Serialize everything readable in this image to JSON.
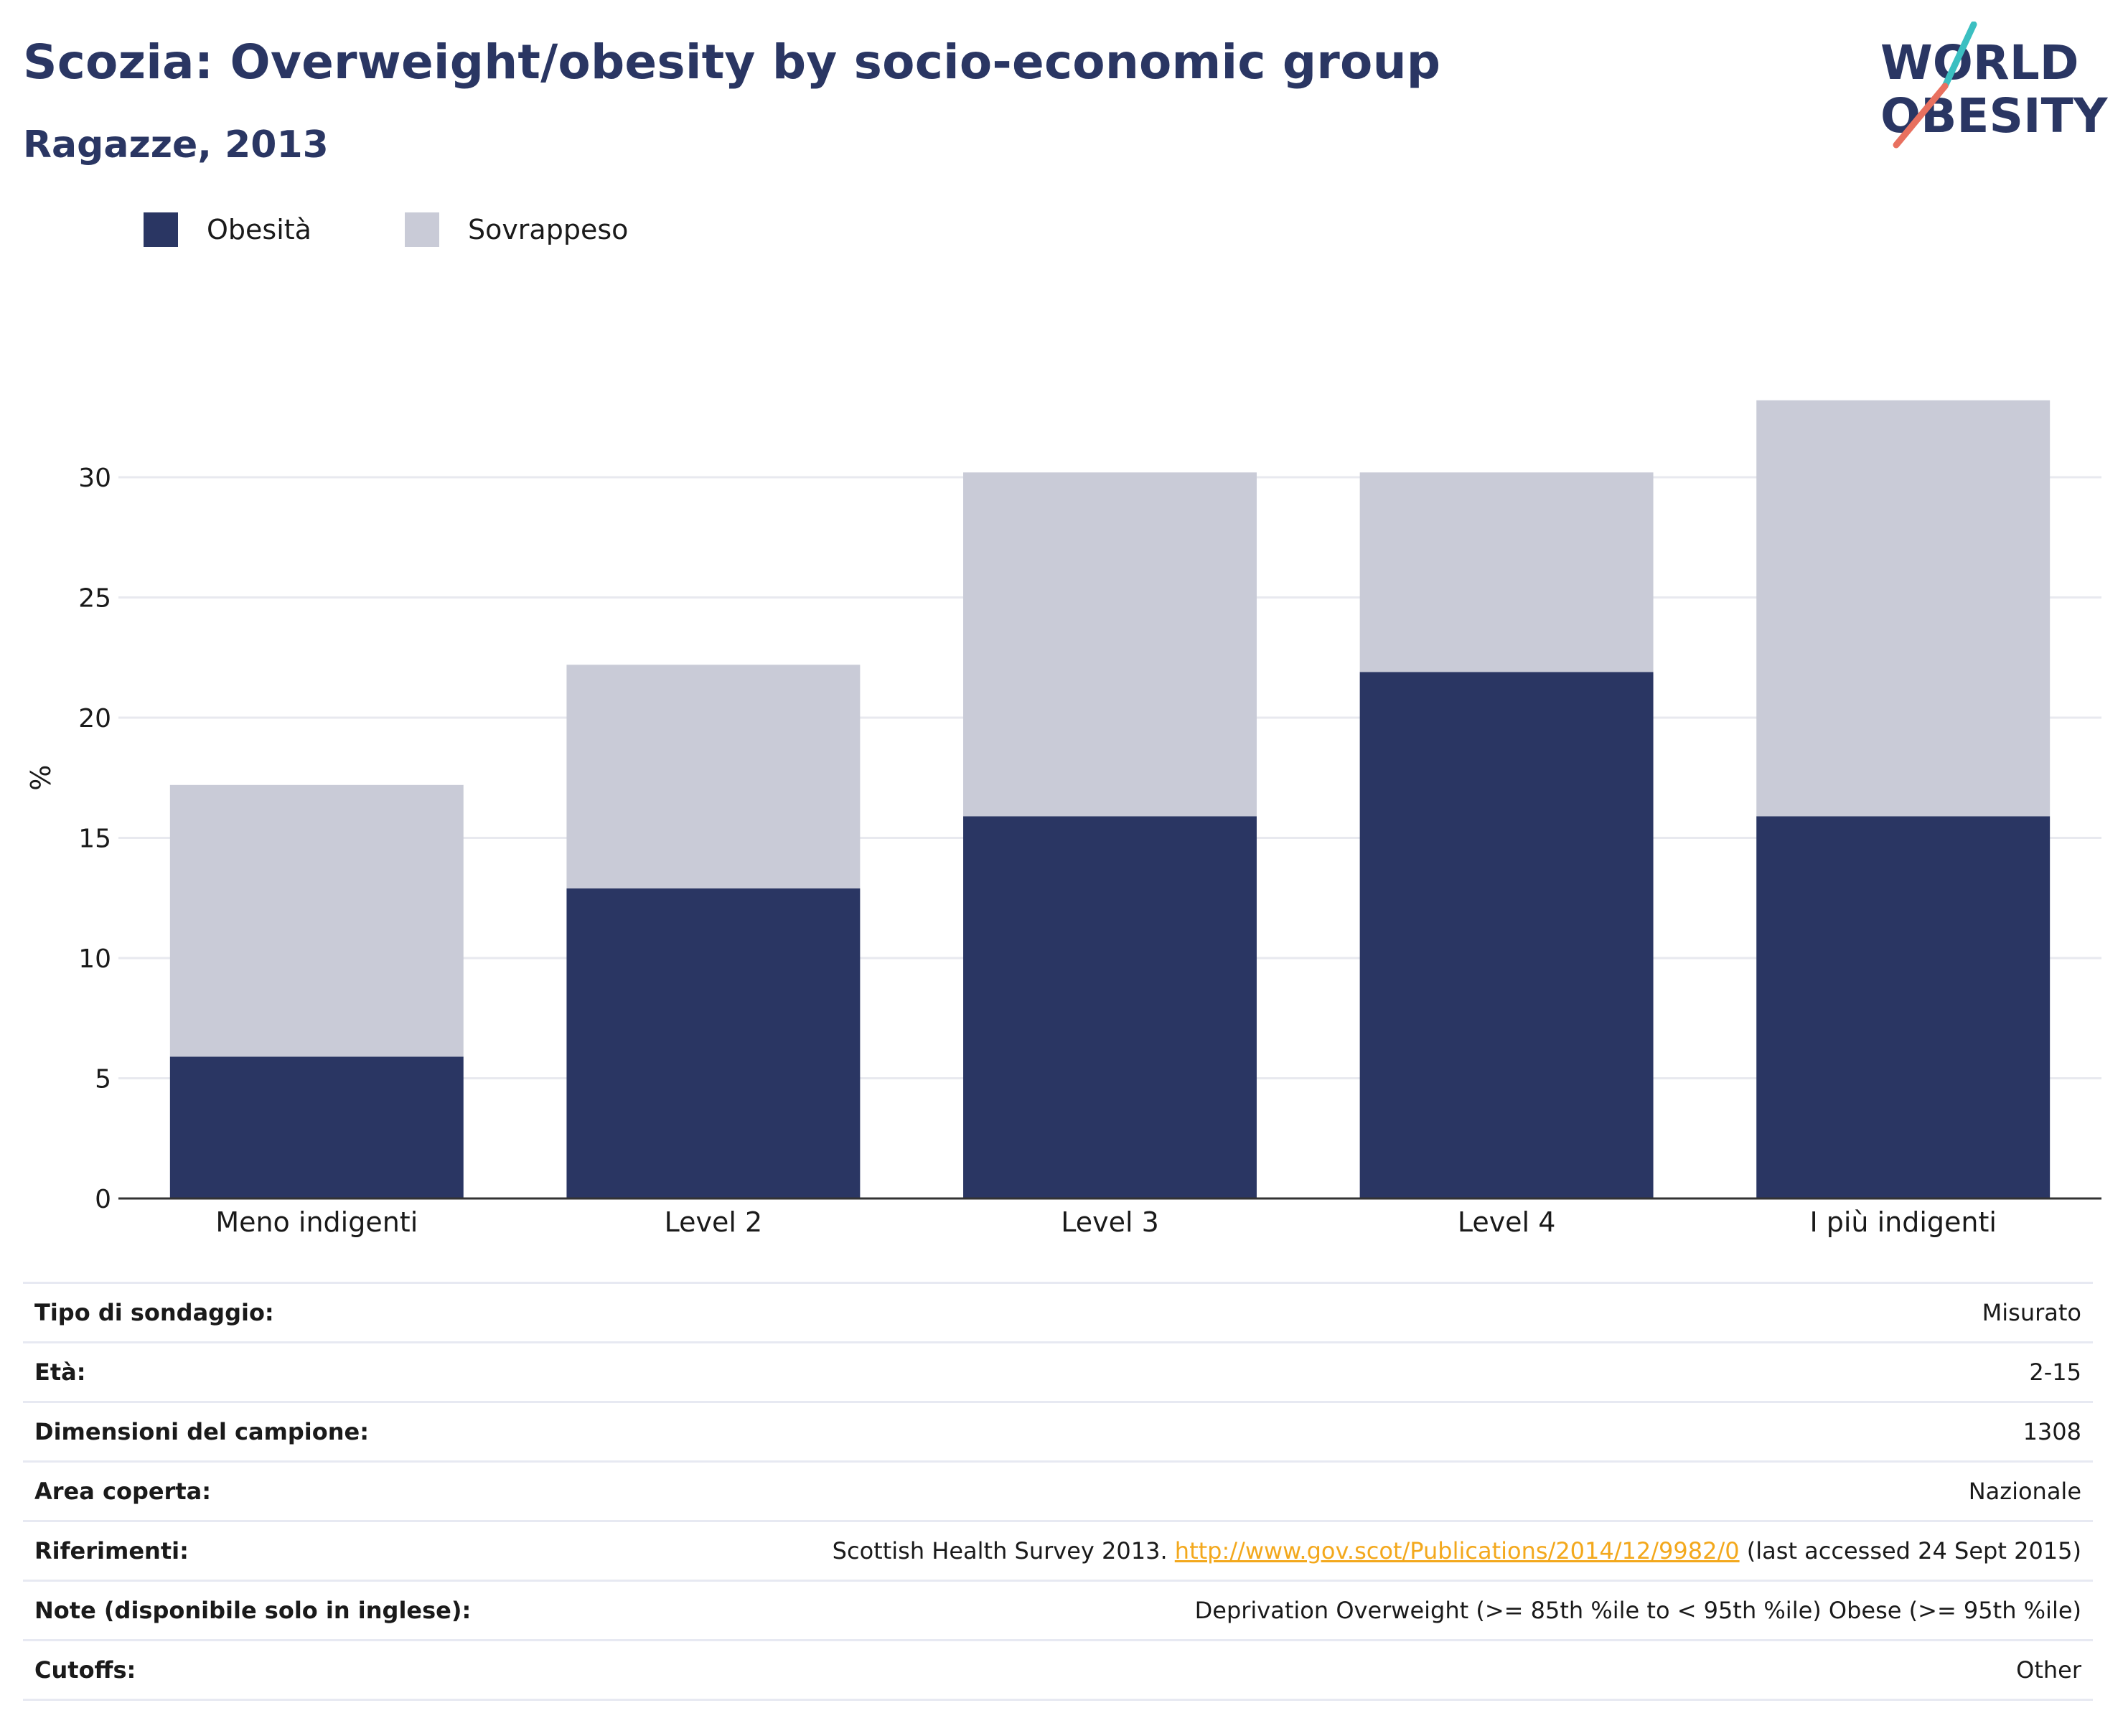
{
  "title": "Scozia: Overweight/obesity by socio-economic group",
  "subtitle": "Ragazze, 2013",
  "logo": {
    "text_line1": "WORLD",
    "text_line2": "OBESITY",
    "colors": {
      "text": "#2a3663",
      "slash_top": "#3bbfc1",
      "slash_bottom": "#e8705f"
    }
  },
  "legend": [
    {
      "label": "Obesità",
      "color": "#2a3663"
    },
    {
      "label": "Sovrappeso",
      "color": "#c9cbd7"
    }
  ],
  "chart_data": {
    "type": "bar",
    "stacked": true,
    "categories": [
      "Meno indigenti",
      "Level 2",
      "Level 3",
      "Level 4",
      "I più indigenti"
    ],
    "series": [
      {
        "name": "Obesità",
        "color": "#2a3663",
        "values": [
          5.9,
          12.9,
          15.9,
          21.9,
          15.9
        ]
      },
      {
        "name": "Sovrappeso",
        "color": "#c9cbd7",
        "values": [
          11.3,
          9.3,
          14.3,
          8.3,
          17.3
        ]
      }
    ],
    "ylabel": "%",
    "xlabel": "",
    "ylim": [
      0,
      35
    ],
    "yticks": [
      0,
      5,
      10,
      15,
      20,
      25,
      30
    ],
    "grid": true
  },
  "info": [
    {
      "key": "Tipo di sondaggio:",
      "value": "Misurato"
    },
    {
      "key": "Età:",
      "value": "2-15"
    },
    {
      "key": "Dimensioni del campione:",
      "value": "1308"
    },
    {
      "key": "Area coperta:",
      "value": "Nazionale"
    },
    {
      "key": "Riferimenti:",
      "value_prefix": "Scottish Health Survey 2013. ",
      "link": "http://www.gov.scot/Publications/2014/12/9982/0",
      "value_suffix": " (last accessed 24 Sept 2015)"
    },
    {
      "key": "Note (disponibile solo in inglese):",
      "value": "Deprivation Overweight (>= 85th %ile to < 95th %ile) Obese (>= 95th %ile)"
    },
    {
      "key": "Cutoffs:",
      "value": "Other"
    }
  ]
}
